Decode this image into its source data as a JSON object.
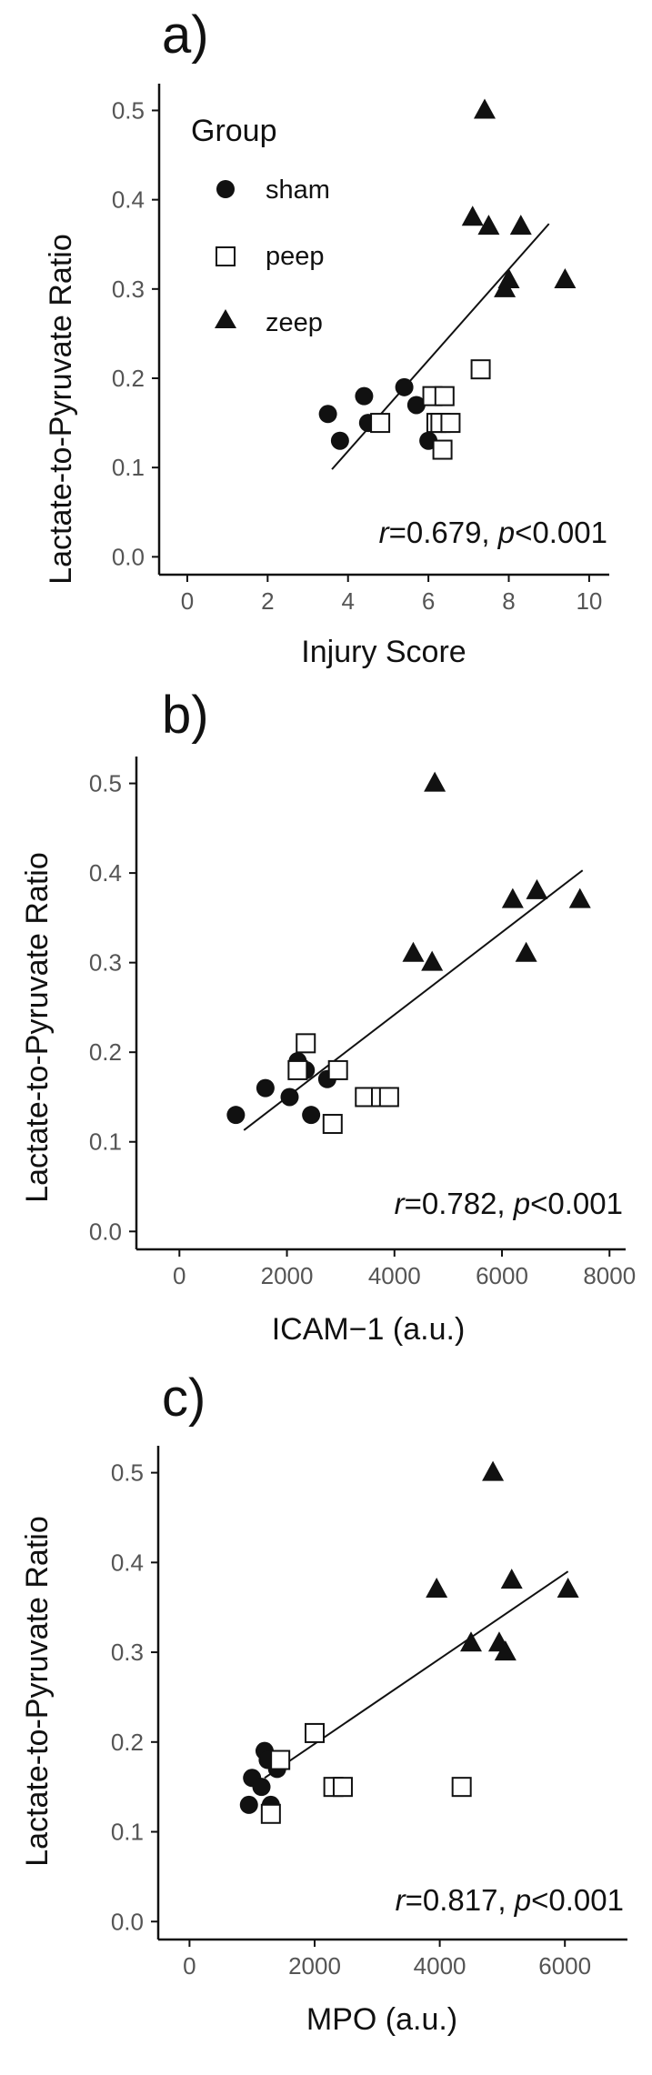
{
  "chart_data": [
    {
      "type": "scatter",
      "panel_label": "a)",
      "xlabel": "Injury Score",
      "ylabel": "Lactate-to-Pyruvate Ratio",
      "xlim": [
        -0.7,
        10.5
      ],
      "ylim": [
        -0.02,
        0.53
      ],
      "x_ticks": [
        0,
        2,
        4,
        6,
        8,
        10
      ],
      "y_ticks": [
        0.0,
        0.1,
        0.2,
        0.3,
        0.4,
        0.5
      ],
      "y_tick_labels": [
        "0.0",
        "0.1",
        "0.2",
        "0.3",
        "0.4",
        "0.5"
      ],
      "annotation": {
        "r_sym": "r",
        "r_val": "=0.679, ",
        "p_sym": "p",
        "p_val": "<0.001"
      },
      "legend": {
        "title": "Group",
        "placement": "top-left",
        "entries": [
          "sham",
          "peep",
          "zeep"
        ]
      },
      "fit": {
        "x": [
          3.6,
          9.0
        ],
        "y": [
          0.098,
          0.373
        ]
      },
      "series": [
        {
          "name": "sham",
          "marker": "circle-filled",
          "x": [
            3.5,
            3.8,
            4.4,
            4.5,
            5.4,
            5.7,
            6.0
          ],
          "y": [
            0.16,
            0.13,
            0.18,
            0.15,
            0.19,
            0.17,
            0.13
          ]
        },
        {
          "name": "peep",
          "marker": "square-open",
          "x": [
            4.8,
            6.1,
            6.2,
            6.3,
            6.4,
            6.35,
            6.55,
            7.3
          ],
          "y": [
            0.15,
            0.18,
            0.15,
            0.15,
            0.18,
            0.12,
            0.15,
            0.21
          ]
        },
        {
          "name": "zeep",
          "marker": "triangle-filled",
          "x": [
            7.1,
            7.4,
            7.5,
            8.3,
            7.9,
            8.0,
            9.4
          ],
          "y": [
            0.38,
            0.5,
            0.37,
            0.37,
            0.3,
            0.31,
            0.31
          ]
        }
      ]
    },
    {
      "type": "scatter",
      "panel_label": "b)",
      "xlabel": "ICAM−1 (a.u.)",
      "ylabel": "Lactate-to-Pyruvate Ratio",
      "xlim": [
        -800,
        8300
      ],
      "ylim": [
        -0.02,
        0.53
      ],
      "x_ticks": [
        0,
        2000,
        4000,
        6000,
        8000
      ],
      "y_ticks": [
        0.0,
        0.1,
        0.2,
        0.3,
        0.4,
        0.5
      ],
      "y_tick_labels": [
        "0.0",
        "0.1",
        "0.2",
        "0.3",
        "0.4",
        "0.5"
      ],
      "annotation": {
        "r_sym": "r",
        "r_val": "=0.782, ",
        "p_sym": "p",
        "p_val": "<0.001"
      },
      "fit": {
        "x": [
          1200,
          7500
        ],
        "y": [
          0.113,
          0.403
        ]
      },
      "series": [
        {
          "name": "sham",
          "marker": "circle-filled",
          "x": [
            1050,
            1600,
            2050,
            2200,
            2350,
            2750,
            2450
          ],
          "y": [
            0.13,
            0.16,
            0.15,
            0.19,
            0.18,
            0.17,
            0.13
          ]
        },
        {
          "name": "peep",
          "marker": "square-open",
          "x": [
            2200,
            2350,
            2950,
            3450,
            3750,
            3900,
            2850
          ],
          "y": [
            0.18,
            0.21,
            0.18,
            0.15,
            0.15,
            0.15,
            0.12
          ]
        },
        {
          "name": "zeep",
          "marker": "triangle-filled",
          "x": [
            4350,
            4700,
            4750,
            6200,
            6450,
            6650,
            7450
          ],
          "y": [
            0.31,
            0.3,
            0.5,
            0.37,
            0.31,
            0.38,
            0.37
          ]
        }
      ]
    },
    {
      "type": "scatter",
      "panel_label": "c)",
      "xlabel": "MPO (a.u.)",
      "ylabel": "Lactate-to-Pyruvate Ratio",
      "xlim": [
        -500,
        7000
      ],
      "ylim": [
        -0.02,
        0.53
      ],
      "x_ticks": [
        0,
        2000,
        4000,
        6000
      ],
      "y_ticks": [
        0.0,
        0.1,
        0.2,
        0.3,
        0.4,
        0.5
      ],
      "y_tick_labels": [
        "0.0",
        "0.1",
        "0.2",
        "0.3",
        "0.4",
        "0.5"
      ],
      "annotation": {
        "r_sym": "r",
        "r_val": "=0.817, ",
        "p_sym": "p",
        "p_val": "<0.001"
      },
      "fit": {
        "x": [
          1200,
          6050
        ],
        "y": [
          0.16,
          0.39
        ]
      },
      "series": [
        {
          "name": "sham",
          "marker": "circle-filled",
          "x": [
            950,
            1000,
            1150,
            1200,
            1250,
            1300,
            1400
          ],
          "y": [
            0.13,
            0.16,
            0.15,
            0.19,
            0.18,
            0.13,
            0.17
          ]
        },
        {
          "name": "peep",
          "marker": "square-open",
          "x": [
            1300,
            1450,
            2000,
            2300,
            2450,
            4350
          ],
          "y": [
            0.12,
            0.18,
            0.21,
            0.15,
            0.15,
            0.15
          ]
        },
        {
          "name": "zeep",
          "marker": "triangle-filled",
          "x": [
            3950,
            4500,
            4850,
            4950,
            5050,
            5150,
            6050
          ],
          "y": [
            0.37,
            0.31,
            0.5,
            0.31,
            0.3,
            0.38,
            0.37
          ]
        }
      ]
    }
  ]
}
